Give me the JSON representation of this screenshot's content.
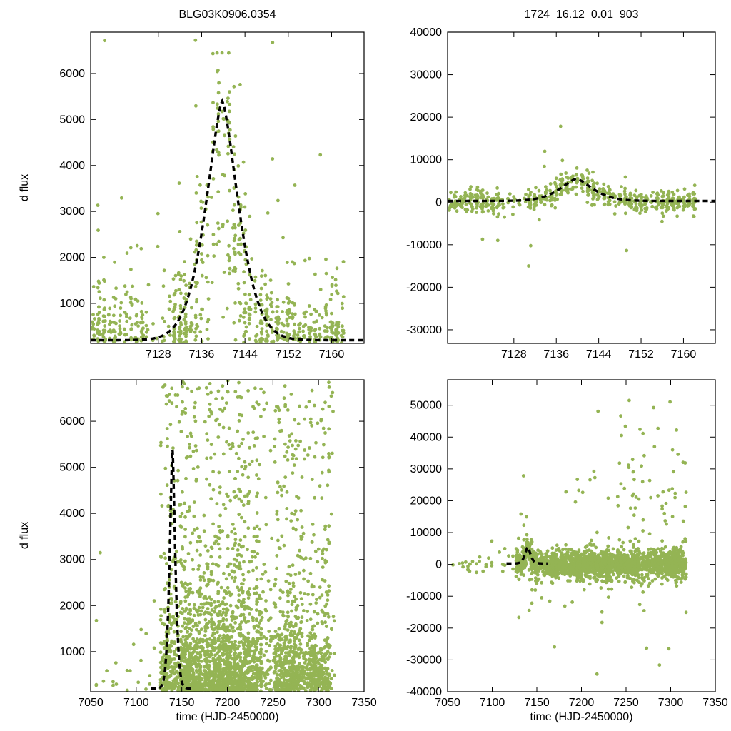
{
  "page": {
    "background": "#ffffff"
  },
  "titles": {
    "left": "BLG03K0906.0354",
    "right": "1724  16.12  0.01  903"
  },
  "axis_labels": {
    "y": "d flux",
    "x": "time (HJD-2450000)"
  },
  "style": {
    "point_color": "#94b454",
    "curve_color": "#000000",
    "frame_color": "#000000",
    "tick_font_px": 16
  },
  "chart_data": {
    "type": "scatter",
    "title": "BLG03K0906.0354",
    "subtitle": "1724  16.12  0.01  903",
    "xlabel": "time (HJD-2450000)",
    "ylabel": "d flux",
    "legend": "none",
    "grid": false,
    "model": {
      "description": "microlensing-like peaked model curve, dashed black",
      "t0": 7139.8,
      "peak_dflux": 5400,
      "width_days": 4.4,
      "shape_power": 1.5
    },
    "panels": [
      {
        "id": "top-left",
        "row": "top",
        "col": "left",
        "x_range": [
          7115.5,
          7166
        ],
        "y_range": [
          130,
          6900
        ],
        "x_ticks": [
          7128,
          7136,
          7144,
          7152,
          7160
        ],
        "y_ticks": [
          1000,
          2000,
          3000,
          4000,
          5000,
          6000
        ],
        "curve": {
          "t0": 7139.8,
          "amp": 5200,
          "baseline": 200,
          "width": 4.4,
          "power": 1.5,
          "t_domain": [
            7115.5,
            7166
          ]
        },
        "scatter": {
          "kind": "flux_zoom",
          "seed": 101,
          "t_min": 7116,
          "t_max": 7162.5,
          "step": 1.0,
          "n_min": 10,
          "n_max": 30,
          "gap": [
            7125.5,
            7131
          ],
          "gap_keep": 0.25,
          "low_scale": 620
        }
      },
      {
        "id": "top-right",
        "row": "top",
        "col": "right",
        "x_range": [
          7115.5,
          7166
        ],
        "y_range": [
          -33200,
          40000
        ],
        "x_ticks": [
          7128,
          7136,
          7144,
          7152,
          7160
        ],
        "y_ticks": [
          -30000,
          -20000,
          -10000,
          0,
          10000,
          20000,
          30000,
          40000
        ],
        "curve": {
          "t0": 7139.8,
          "amp": 5200,
          "baseline": 300,
          "width": 4.4,
          "power": 1.5,
          "t_domain": [
            7115.5,
            7166
          ]
        },
        "scatter": {
          "kind": "resid_zoom",
          "seed": 202,
          "t_min": 7116,
          "t_max": 7162.5,
          "step": 1.0,
          "n_min": 8,
          "n_max": 22,
          "gap": [
            7125.5,
            7131
          ],
          "gap_keep": 0.3,
          "noise": 1500,
          "outlier_p": 0.03,
          "outlier_scale": 11000
        }
      },
      {
        "id": "bottom-left",
        "row": "bottom",
        "col": "left",
        "x_range": [
          7050,
          7350
        ],
        "y_range": [
          130,
          6900
        ],
        "x_ticks": [
          7050,
          7100,
          7150,
          7200,
          7250,
          7300,
          7350
        ],
        "y_ticks": [
          1000,
          2000,
          3000,
          4000,
          5000,
          6000
        ],
        "curve": {
          "t0": 7139.8,
          "amp": 5200,
          "baseline": 200,
          "width": 4.4,
          "power": 1.5,
          "t_domain": [
            7116,
            7162
          ]
        },
        "scatter": {
          "kind": "flux_wide",
          "seed": 303,
          "sparse": [
            7056,
            7126
          ],
          "dense": [
            7127,
            7318
          ],
          "low_scale": 750,
          "uniform_p": 0.2
        }
      },
      {
        "id": "bottom-right",
        "row": "bottom",
        "col": "right",
        "x_range": [
          7050,
          7350
        ],
        "y_range": [
          -40000,
          58000
        ],
        "x_ticks": [
          7050,
          7100,
          7150,
          7200,
          7250,
          7300,
          7350
        ],
        "y_ticks": [
          -40000,
          -30000,
          -20000,
          -10000,
          0,
          10000,
          20000,
          30000,
          40000,
          50000
        ],
        "curve": {
          "t0": 7139.8,
          "amp": 5200,
          "baseline": 300,
          "width": 4.4,
          "power": 1.5,
          "t_domain": [
            7116,
            7162
          ]
        },
        "scatter": {
          "kind": "resid_wide",
          "seed": 404,
          "sparse": [
            7056,
            7126
          ],
          "dense": [
            7127,
            7318
          ],
          "noise": 1900,
          "outlier_p": 0.05,
          "outlier_scale": 14000,
          "late_pos_p": 0.05
        }
      }
    ]
  }
}
